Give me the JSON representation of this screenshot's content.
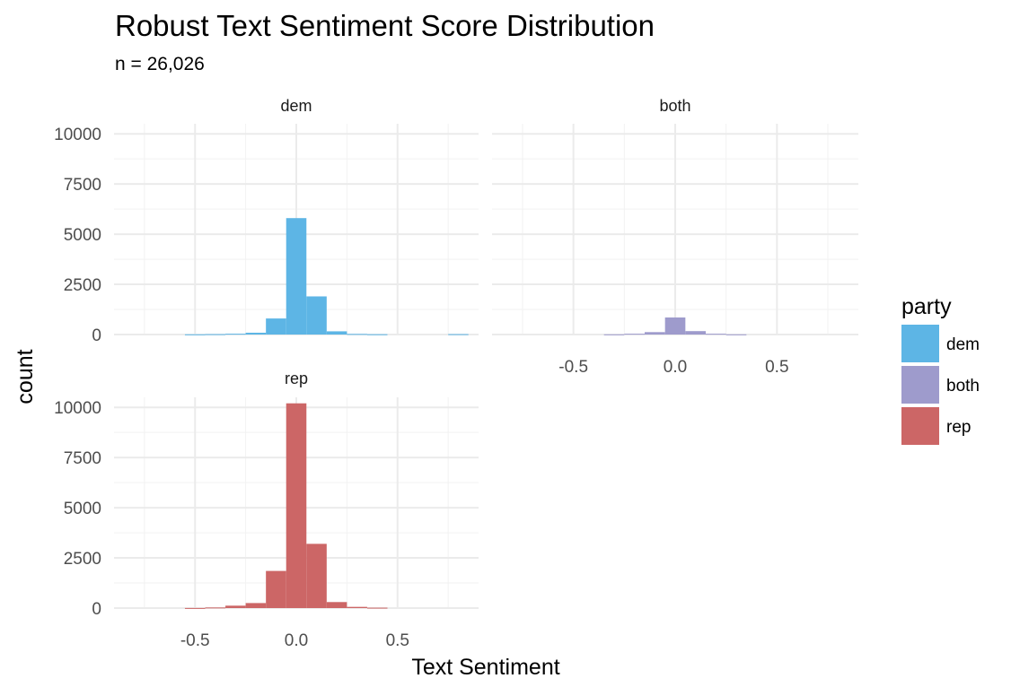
{
  "chart_data": {
    "type": "bar",
    "title": "Robust Text Sentiment Score Distribution",
    "subtitle": "n = 26,026",
    "xlabel": "Text Sentiment",
    "ylabel": "count",
    "xlim": [
      -0.9,
      0.9
    ],
    "ylim": [
      0,
      10500
    ],
    "x_ticks": [
      "-0.5",
      "0.0",
      "0.5"
    ],
    "x_tick_values": [
      -0.5,
      0.0,
      0.5
    ],
    "y_ticks": [
      "0",
      "2500",
      "5000",
      "7500",
      "10000"
    ],
    "y_tick_values": [
      0,
      2500,
      5000,
      7500,
      10000
    ],
    "grid": true,
    "bin_width": 0.1,
    "bin_centers": [
      -0.7,
      -0.6,
      -0.5,
      -0.4,
      -0.3,
      -0.2,
      -0.1,
      0.0,
      0.1,
      0.2,
      0.3,
      0.4,
      0.5,
      0.6,
      0.7,
      0.8
    ],
    "panels": [
      {
        "name": "dem",
        "color": "#5DB5E5",
        "values": [
          0,
          0,
          10,
          20,
          40,
          90,
          800,
          5800,
          1900,
          160,
          30,
          15,
          0,
          0,
          0,
          20
        ]
      },
      {
        "name": "both",
        "color": "#9E9BCC",
        "values": [
          0,
          0,
          0,
          0,
          10,
          40,
          120,
          850,
          170,
          40,
          10,
          0,
          0,
          0,
          0,
          0
        ]
      },
      {
        "name": "rep",
        "color": "#CC6666",
        "values": [
          0,
          0,
          5,
          30,
          120,
          250,
          1850,
          10200,
          3200,
          300,
          60,
          20,
          0,
          0,
          0,
          0
        ]
      }
    ],
    "legend": {
      "title": "party",
      "position": "right",
      "entries": [
        {
          "label": "dem",
          "color": "#5DB5E5"
        },
        {
          "label": "both",
          "color": "#9E9BCC"
        },
        {
          "label": "rep",
          "color": "#CC6666"
        }
      ]
    }
  }
}
